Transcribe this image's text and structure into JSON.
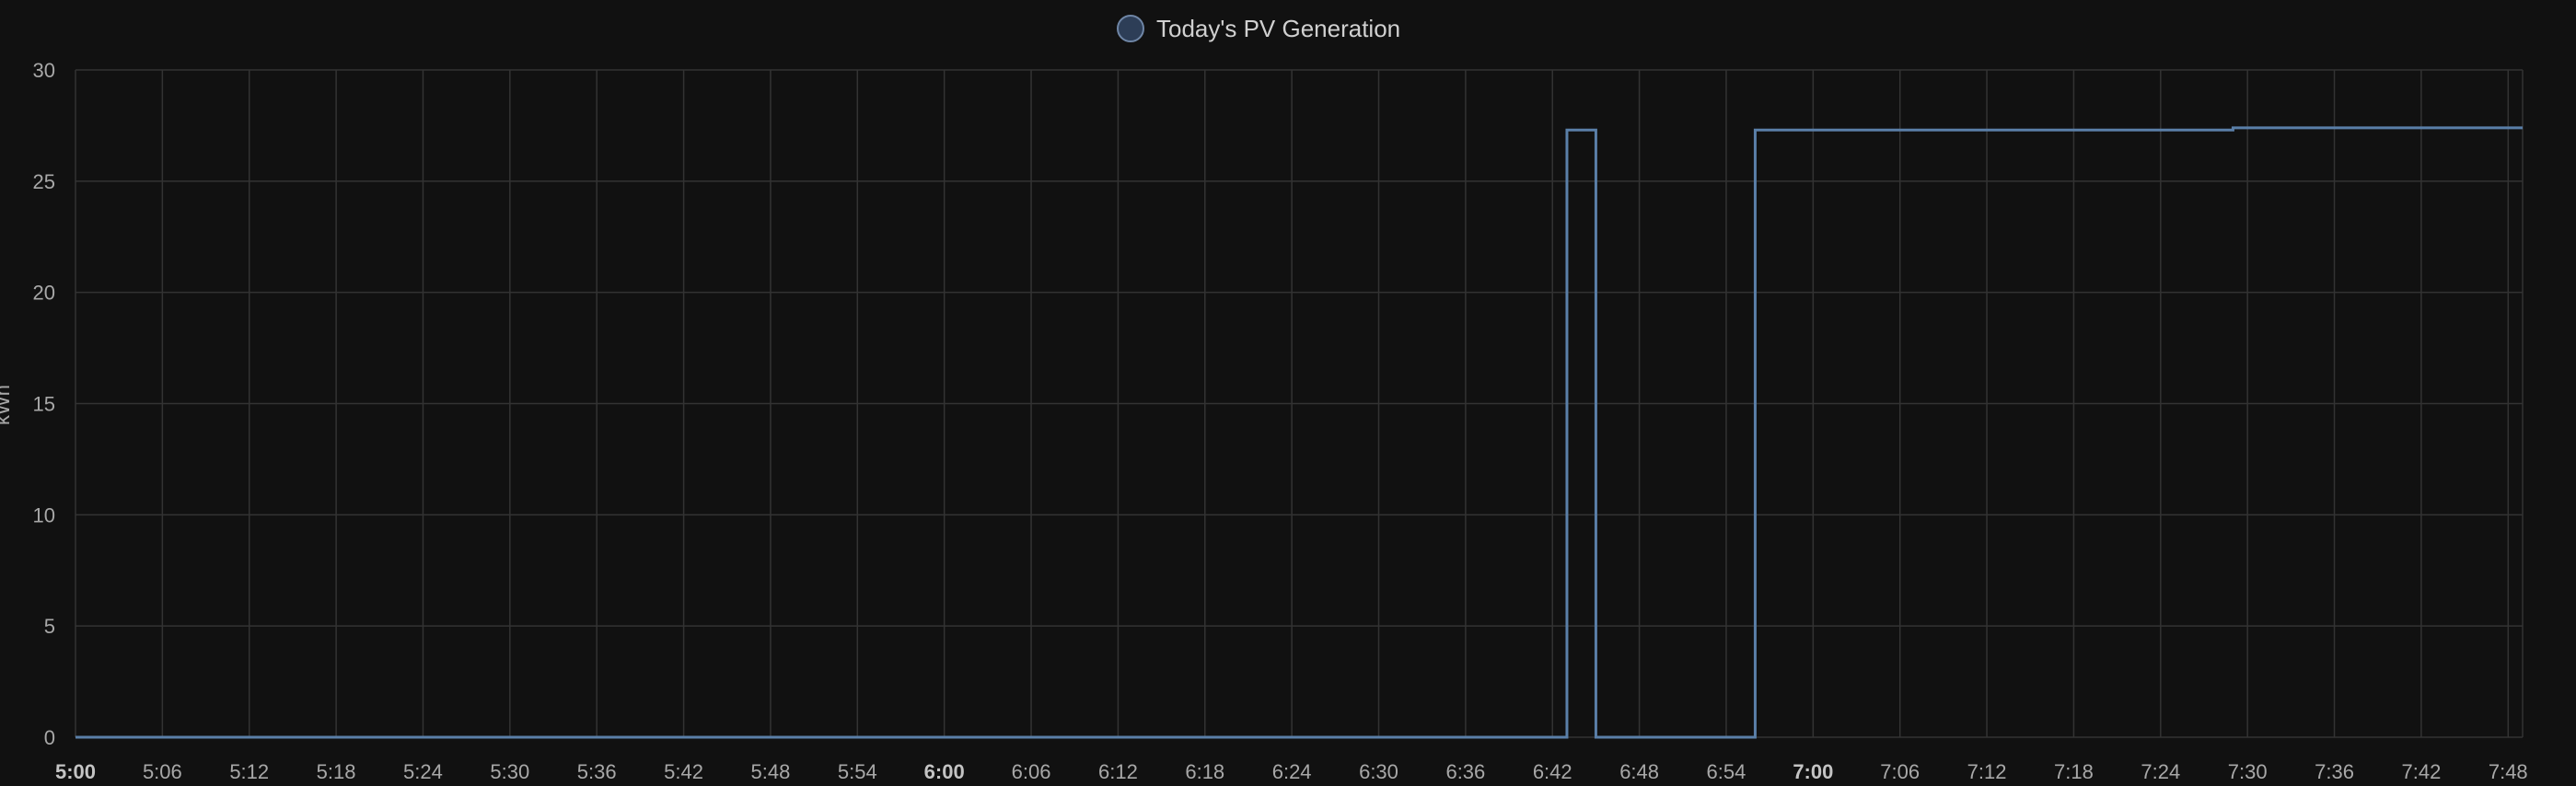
{
  "chart_data": {
    "type": "line",
    "step": true,
    "legend": {
      "position": "top-center",
      "label": "Today's PV Generation",
      "marker_color": "#2d3e57",
      "marker_border": "#6f86a6"
    },
    "ylabel": "kWh",
    "ylim": [
      0,
      30
    ],
    "yticks": [
      "0",
      "5",
      "10",
      "15",
      "20",
      "25",
      "30"
    ],
    "xlim": [
      "5:00",
      "7:49"
    ],
    "xticks": [
      "5:00",
      "5:06",
      "5:12",
      "5:18",
      "5:24",
      "5:30",
      "5:36",
      "5:42",
      "5:48",
      "5:54",
      "6:00",
      "6:06",
      "6:12",
      "6:18",
      "6:24",
      "6:30",
      "6:36",
      "6:42",
      "6:48",
      "6:54",
      "7:00",
      "7:06",
      "7:12",
      "7:18",
      "7:24",
      "7:30",
      "7:36",
      "7:42",
      "7:48"
    ],
    "major_xticks": [
      "5:00",
      "6:00",
      "7:00"
    ],
    "grid": true,
    "series": [
      {
        "name": "Today's PV Generation",
        "color": "#5a7fa8",
        "points": [
          {
            "x": "5:00",
            "y": 0
          },
          {
            "x": "6:43",
            "y": 27.3
          },
          {
            "x": "6:45",
            "y": 0
          },
          {
            "x": "6:56",
            "y": 27.3
          },
          {
            "x": "7:29",
            "y": 27.4
          },
          {
            "x": "7:49",
            "y": 27.4
          }
        ]
      }
    ]
  }
}
